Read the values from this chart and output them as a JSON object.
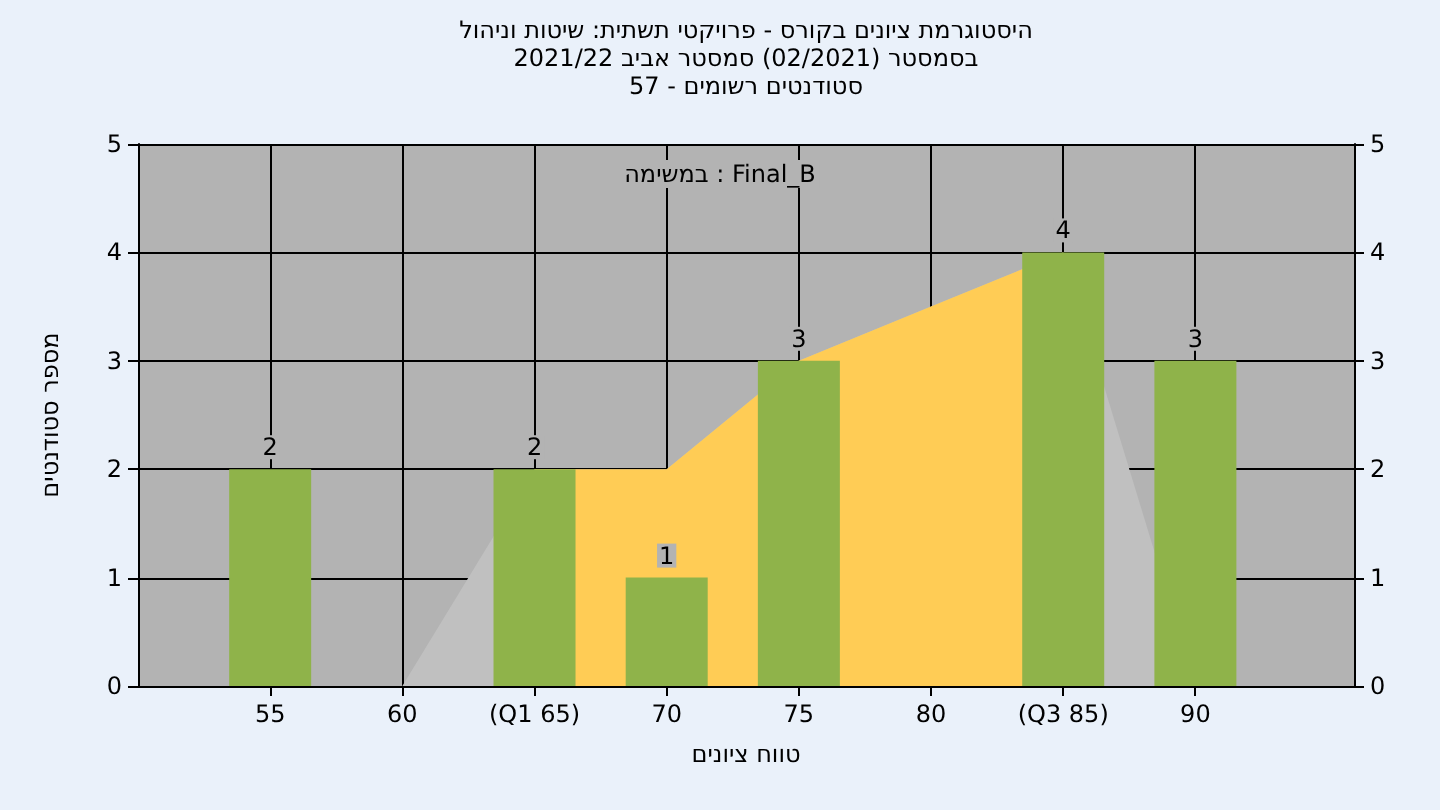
{
  "chart_data": {
    "type": "bar",
    "title": "היסטוגרמת ציונים בקורס - פרויקטי תשתית: שיטות וניהול",
    "subtitle": "בסמסטר (02/2021) סמסטר אביב 2021/22\nסטודנטים רשומים - 57",
    "xlabel": "טווח ציונים",
    "ylabel": "מספר סטודנטים",
    "annotations": [
      "במשימה : Final_B"
    ],
    "series": [
      {
        "type": "area",
        "color": "#c0c0c0",
        "x": [
          60,
          65,
          70,
          75,
          80,
          85,
          90
        ],
        "values": [
          0,
          2,
          2,
          3,
          3.5,
          4,
          0
        ]
      },
      {
        "type": "area",
        "color": "#ffcc55",
        "x": [
          65,
          70,
          75,
          80,
          85
        ],
        "values": [
          2,
          2,
          3,
          3.5,
          4
        ]
      },
      {
        "color": "#8fb34a",
        "x": [
          55,
          65,
          70,
          75,
          85,
          90
        ],
        "values": [
          2,
          2,
          1,
          3,
          4,
          3
        ],
        "value_labels": [
          "2",
          "2",
          "1",
          "3",
          "4",
          "3"
        ]
      }
    ],
    "xlim": [
      50,
      96
    ],
    "xticks": [
      55,
      60,
      {
        "value": 65,
        "label": "(Q1 65)"
      },
      70,
      75,
      80,
      {
        "value": 85,
        "label": "(Q3 85)"
      },
      90
    ],
    "ylim": [
      0,
      5
    ],
    "yticks": [
      0,
      1,
      2,
      3,
      4,
      5
    ],
    "y2lim": [
      0,
      5
    ],
    "y2ticks": [
      0,
      1,
      2,
      3,
      4,
      5
    ],
    "grid": true
  }
}
